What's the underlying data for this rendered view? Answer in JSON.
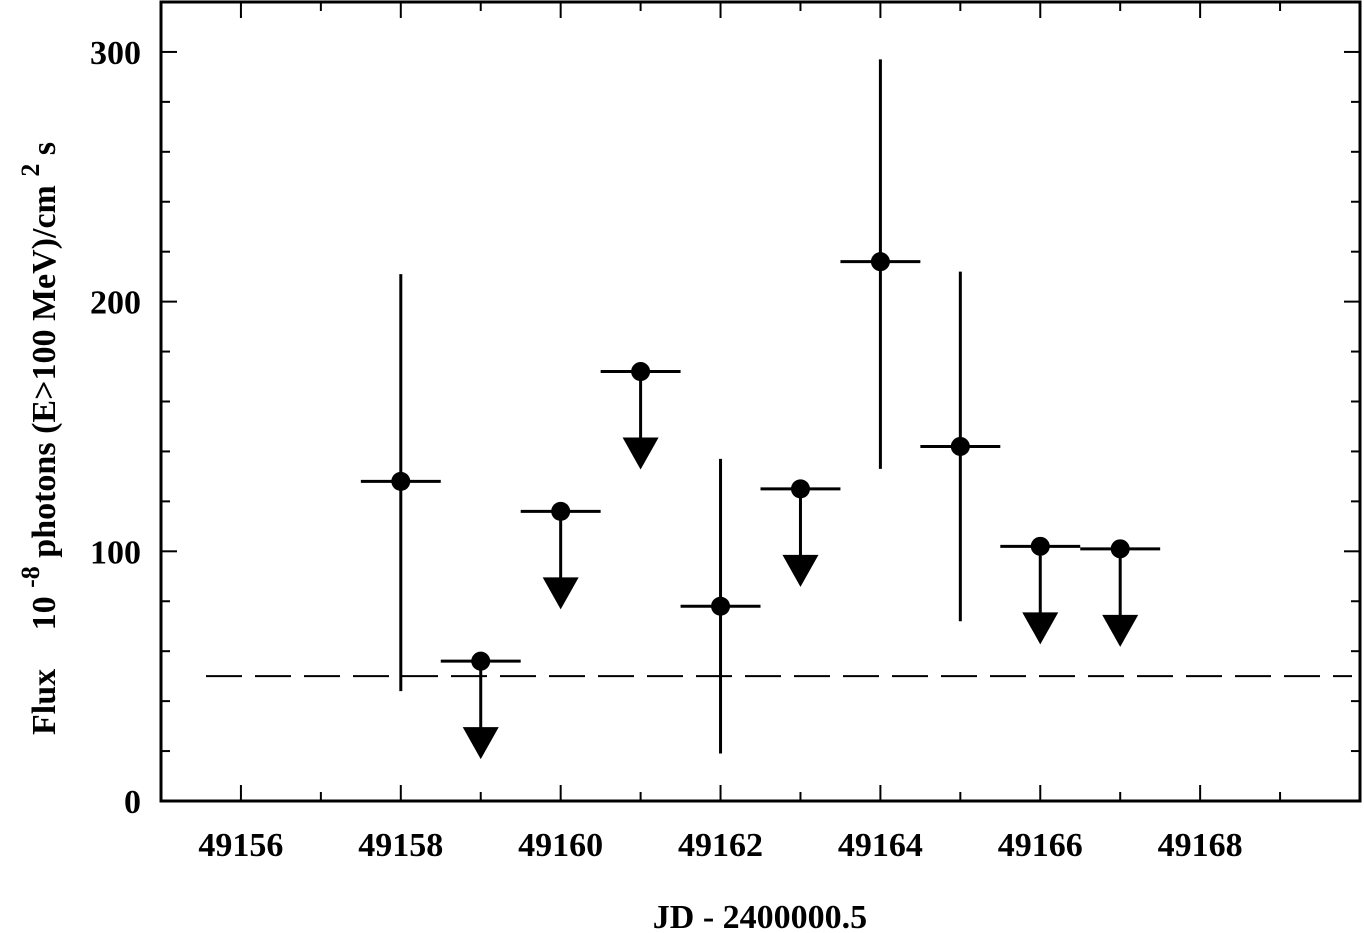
{
  "chart_data": {
    "type": "scatter",
    "title": "",
    "xlabel": "JD - 2400000.5",
    "ylabel": {
      "prefix": "Flux",
      "base": "10",
      "exponent": "-8",
      "text": "photons (E>100 MeV)/cm",
      "exponent2": "2",
      "suffix": " s"
    },
    "xlim": [
      49155,
      49170
    ],
    "ylim": [
      0,
      320
    ],
    "xticks": [
      49156,
      49158,
      49160,
      49162,
      49164,
      49166,
      49168
    ],
    "xtick_labels": [
      "49156",
      "49158",
      "49160",
      "49162",
      "49164",
      "49166",
      "49168"
    ],
    "yticks": [
      0,
      100,
      200,
      300
    ],
    "ytick_labels": [
      "0",
      "100",
      "200",
      "300"
    ],
    "x_minor_step": 1,
    "y_minor_step": 20,
    "grid": false,
    "reference_line": {
      "y": 50,
      "style": "dashed"
    },
    "points": [
      {
        "x": 49158,
        "y": 128,
        "xerr": 0.5,
        "ylow": 44,
        "yhigh": 211,
        "upper_limit": false
      },
      {
        "x": 49159,
        "y": 56,
        "xerr": 0.5,
        "upper_limit": true
      },
      {
        "x": 49160,
        "y": 116,
        "xerr": 0.5,
        "upper_limit": true
      },
      {
        "x": 49161,
        "y": 172,
        "xerr": 0.5,
        "upper_limit": true
      },
      {
        "x": 49162,
        "y": 78,
        "xerr": 0.5,
        "ylow": 19,
        "yhigh": 137,
        "upper_limit": false
      },
      {
        "x": 49163,
        "y": 125,
        "xerr": 0.5,
        "upper_limit": true
      },
      {
        "x": 49164,
        "y": 216,
        "xerr": 0.5,
        "ylow": 133,
        "yhigh": 297,
        "upper_limit": false
      },
      {
        "x": 49165,
        "y": 142,
        "xerr": 0.5,
        "ylow": 72,
        "yhigh": 212,
        "upper_limit": false
      },
      {
        "x": 49166,
        "y": 102,
        "xerr": 0.5,
        "upper_limit": true
      },
      {
        "x": 49167,
        "y": 101,
        "xerr": 0.5,
        "upper_limit": true
      }
    ]
  }
}
